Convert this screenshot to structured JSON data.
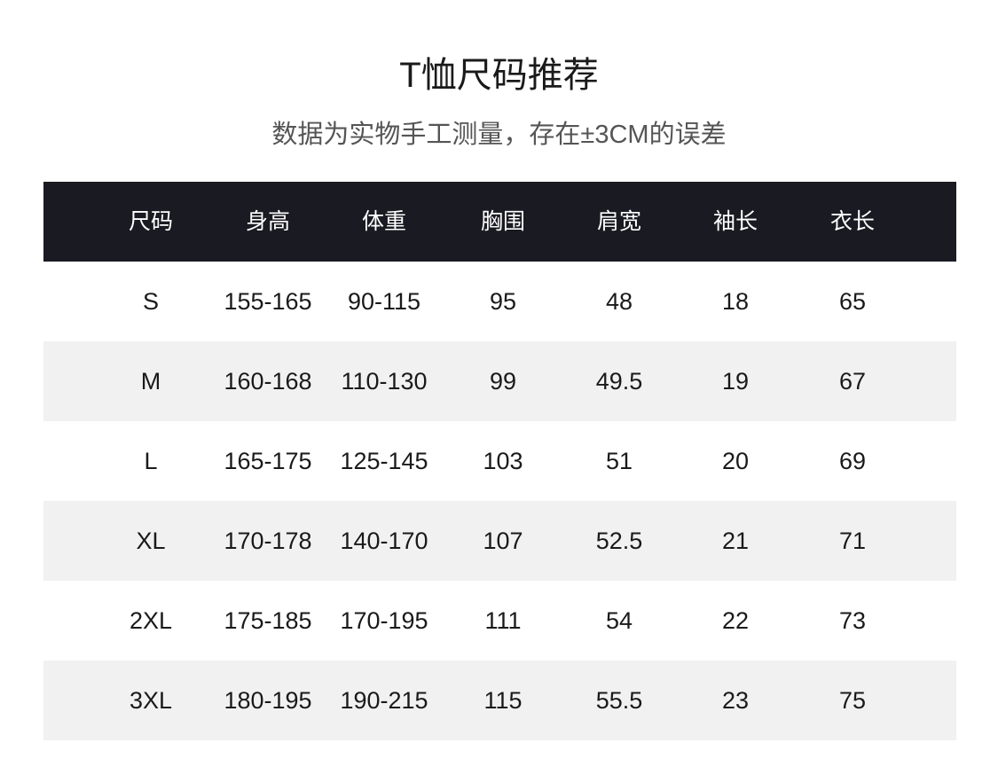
{
  "title": "T恤尺码推荐",
  "subtitle": "数据为实物手工测量，存在±3CM的误差",
  "colors": {
    "header_bg": "#1a1a22",
    "alt_row_bg": "#f1f1f1"
  },
  "table": {
    "headers": [
      "尺码",
      "身高",
      "体重",
      "胸围",
      "肩宽",
      "袖长",
      "衣长"
    ],
    "rows": [
      [
        "S",
        "155-165",
        "90-115",
        "95",
        "48",
        "18",
        "65"
      ],
      [
        "M",
        "160-168",
        "110-130",
        "99",
        "49.5",
        "19",
        "67"
      ],
      [
        "L",
        "165-175",
        "125-145",
        "103",
        "51",
        "20",
        "69"
      ],
      [
        "XL",
        "170-178",
        "140-170",
        "107",
        "52.5",
        "21",
        "71"
      ],
      [
        "2XL",
        "175-185",
        "170-195",
        "111",
        "54",
        "22",
        "73"
      ],
      [
        "3XL",
        "180-195",
        "190-215",
        "115",
        "55.5",
        "23",
        "75"
      ]
    ]
  }
}
